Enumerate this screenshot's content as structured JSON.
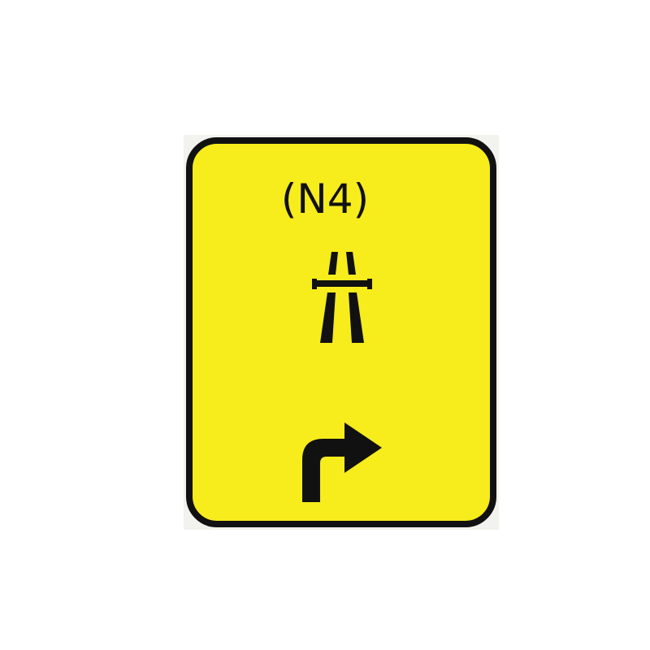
{
  "sign": {
    "route_number": "(N4)",
    "background_color": "#f7ec1c",
    "border_color": "#111111",
    "symbols": {
      "motorway": "motorway-icon",
      "direction": "turn-right-arrow-icon"
    }
  }
}
